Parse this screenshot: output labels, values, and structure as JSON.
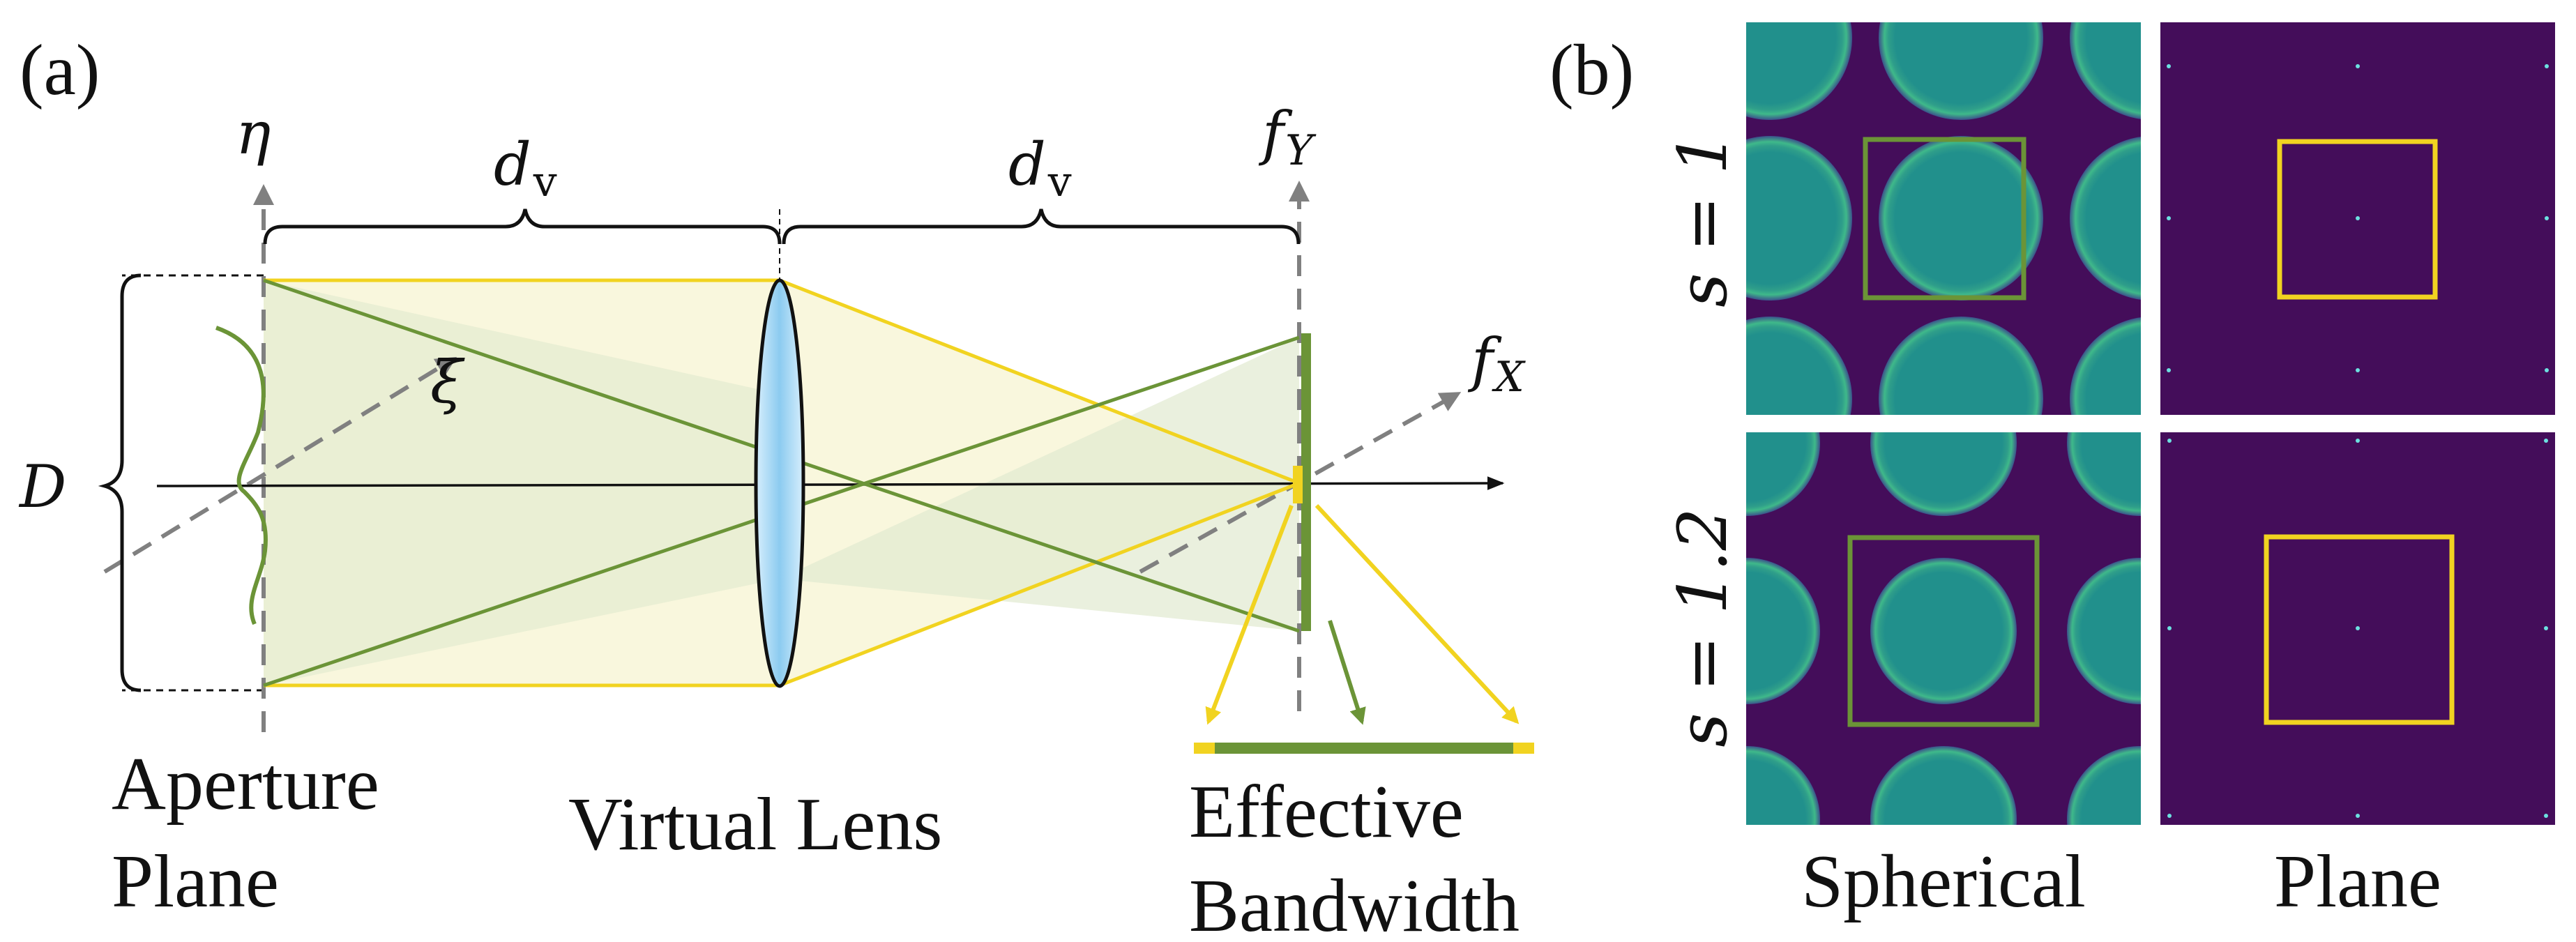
{
  "panel_a": {
    "label": "(a)",
    "axis_eta": "η",
    "axis_xi": "ξ",
    "axis_fx": {
      "base": "f",
      "sub": "X"
    },
    "axis_fy": {
      "base": "f",
      "sub": "Y"
    },
    "distance": {
      "base": "d",
      "sub": "v"
    },
    "aperture_size": "D",
    "caption_aperture": [
      "Aperture",
      "Plane"
    ],
    "caption_lens": "Virtual Lens",
    "caption_bandwidth": [
      "Effective",
      "Bandwidth"
    ]
  },
  "panel_b": {
    "label": "(b)",
    "row_labels": [
      "s = 1",
      "s = 1.2"
    ],
    "column_labels": [
      "Spherical",
      "Plane"
    ]
  },
  "colors": {
    "green": "#6b9437",
    "yellow": "#f1d320",
    "yellow_fill": "#f9f7dd",
    "green_fill": "#e6ecd0",
    "lens": "#9ed2f2",
    "grid_bg": "#440d5a",
    "disc": "#21908c",
    "gray_axis": "#808080"
  }
}
